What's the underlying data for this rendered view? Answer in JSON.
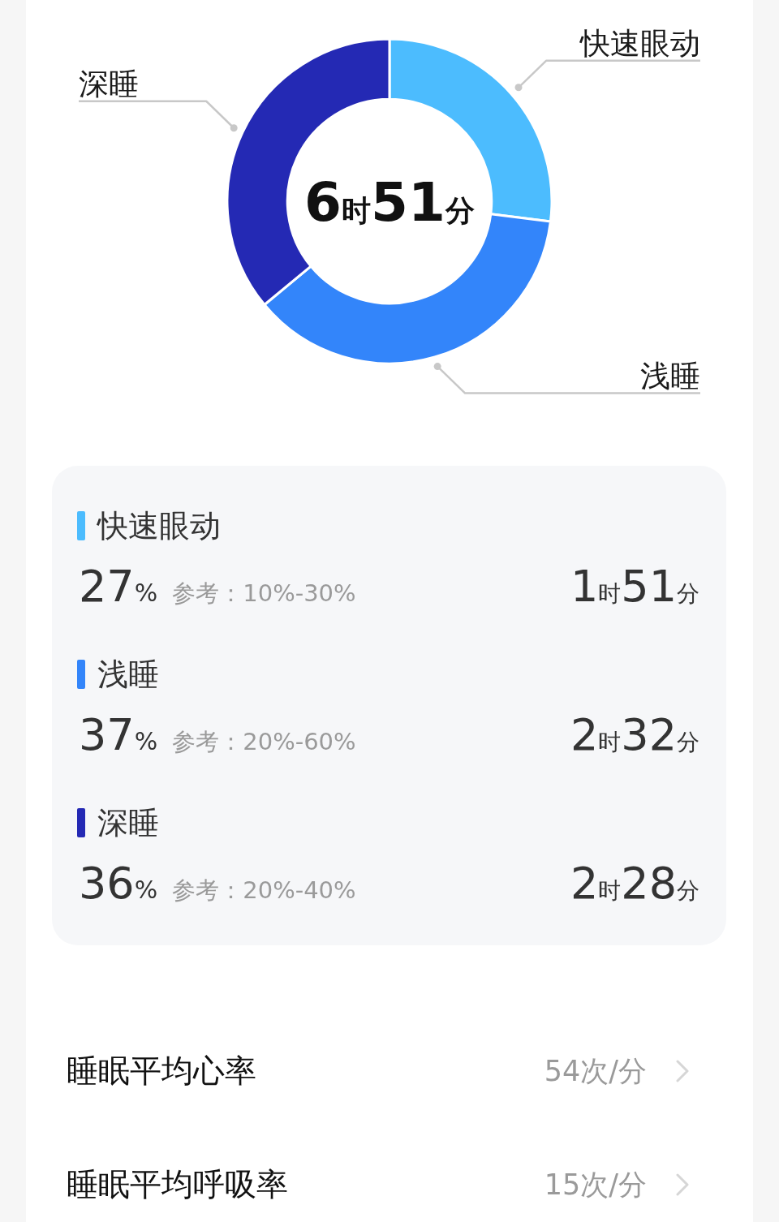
{
  "chart_data": [
    {
      "type": "donut",
      "categories": [
        "快速眼动",
        "浅睡",
        "深睡"
      ],
      "values": [
        27,
        37,
        36
      ],
      "colors": [
        "#4cbcfe",
        "#3385fa",
        "#2429b4"
      ],
      "value_labels": [
        "27%",
        "37%",
        "36%"
      ],
      "legend": "bottom",
      "annotations": [
        "6时51分",
        "参考：10%-30%",
        "1时51分",
        "参考：20%-60%",
        "2时32分",
        "参考：20%-40%",
        "2时28分"
      ]
    },
    {
      "type": "other",
      "annotations": [
        "睡眠平均心率",
        "54次/分",
        "睡眠平均呼吸率",
        "15次/分"
      ]
    }
  ]
}
